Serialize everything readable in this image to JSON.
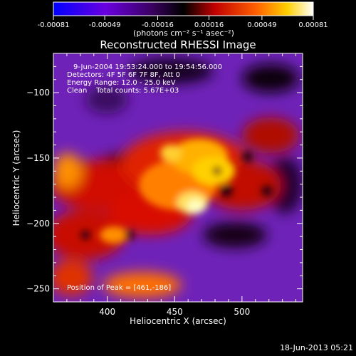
{
  "colorbar": {
    "ticks": [
      "-0.00081",
      "-0.00049",
      "-0.00016",
      "0.00016",
      "0.00049",
      "0.00081"
    ],
    "tick_values": [
      -0.00081,
      -0.00049,
      -0.00016,
      0.00016,
      0.00049,
      0.00081
    ],
    "unit_label": "(photons cm⁻² s⁻¹ asec⁻²)",
    "range": [
      -0.00081,
      0.00081
    ],
    "colors": [
      "#0000ff",
      "#8a00c8",
      "#000000",
      "#ff2000",
      "#ffc000",
      "#ffffff"
    ]
  },
  "chart_data": {
    "type": "heatmap",
    "title": "Reconstructed RHESSI Image",
    "xlabel": "Heliocentric X (arcsec)",
    "ylabel": "Heliocentric Y (arcsec)",
    "xlim": [
      360,
      545
    ],
    "ylim": [
      -260,
      -70
    ],
    "xticks": [
      400,
      450,
      500
    ],
    "xtick_labels": [
      "400",
      "450",
      "500"
    ],
    "yticks": [
      -250,
      -200,
      -150,
      -100
    ],
    "ytick_labels": [
      "−250",
      "−200",
      "−150",
      "−100"
    ],
    "peak": {
      "x": 461,
      "y": -186
    },
    "colormap": [
      "#0000ff",
      "#8a00c8",
      "#000000",
      "#ff2000",
      "#ffc000",
      "#ffffff"
    ]
  },
  "annotations": {
    "time_range": "9-Jun-2004 19:53:24.000 to 19:54:56.000",
    "detectors": "Detectors: 4F 5F 6F 7F 8F, Att 0",
    "energy": "Energy Range: 12.0 - 25.0 keV",
    "clean": "Clean    Total counts: 5.67E+03",
    "peak_text": "Position of Peak = [461,-186]"
  },
  "footer": {
    "timestamp": "18-Jun-2013 05:21"
  }
}
